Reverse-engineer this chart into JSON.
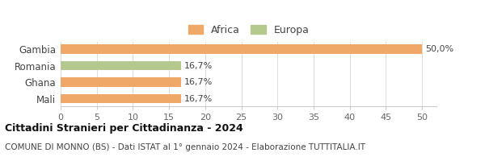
{
  "categories": [
    "Mali",
    "Ghana",
    "Romania",
    "Gambia"
  ],
  "values": [
    16.7,
    16.7,
    16.7,
    50.0
  ],
  "colors": [
    "#f0a868",
    "#f0a868",
    "#b5c98e",
    "#f0a868"
  ],
  "bar_labels": [
    "16,7%",
    "16,7%",
    "16,7%",
    "50,0%"
  ],
  "legend": [
    {
      "label": "Africa",
      "color": "#f0a868"
    },
    {
      "label": "Europa",
      "color": "#b5c98e"
    }
  ],
  "xlim": [
    0,
    52
  ],
  "xticks": [
    0,
    5,
    10,
    15,
    20,
    25,
    30,
    35,
    40,
    45,
    50
  ],
  "title": "Cittadini Stranieri per Cittadinanza - 2024",
  "subtitle": "COMUNE DI MONNO (BS) - Dati ISTAT al 1° gennaio 2024 - Elaborazione TUTTITALIA.IT",
  "background_color": "#ffffff"
}
